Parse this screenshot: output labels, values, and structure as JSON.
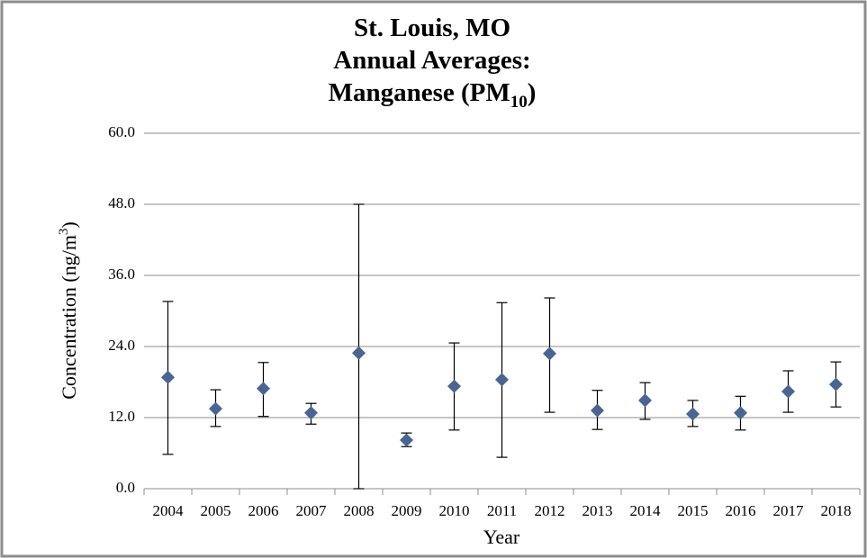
{
  "chart_data": {
    "type": "errorbar",
    "title": {
      "lines": [
        "St. Louis, MO",
        "Annual Averages:"
      ],
      "last": [
        "Manganese (PM",
        "10",
        ")"
      ]
    },
    "xlabel": "Year",
    "ylabel": [
      "Concentration (ng/m",
      "3",
      ")"
    ],
    "categories": [
      "2004",
      "2005",
      "2006",
      "2007",
      "2008",
      "2009",
      "2010",
      "2011",
      "2012",
      "2013",
      "2014",
      "2015",
      "2016",
      "2017",
      "2018"
    ],
    "values": [
      18.8,
      13.5,
      16.9,
      12.8,
      22.9,
      8.2,
      17.3,
      18.4,
      22.8,
      13.2,
      14.9,
      12.6,
      12.8,
      16.4,
      17.6
    ],
    "lower": [
      5.8,
      10.5,
      12.2,
      10.9,
      0.0,
      7.1,
      9.9,
      5.3,
      12.9,
      10.0,
      11.7,
      10.5,
      9.9,
      12.9,
      13.8
    ],
    "upper": [
      31.6,
      16.7,
      21.3,
      14.4,
      48.0,
      9.4,
      24.6,
      31.4,
      32.2,
      16.6,
      17.9,
      14.9,
      15.6,
      19.9,
      21.4
    ],
    "color": "#4a6591",
    "ylim": [
      0,
      60
    ],
    "yticks": [
      {
        "value": 0,
        "label": "0.0"
      },
      {
        "value": 12,
        "label": "12.0"
      },
      {
        "value": 24,
        "label": "24.0"
      },
      {
        "value": 36,
        "label": "36.0"
      },
      {
        "value": 48,
        "label": "48.0"
      },
      {
        "value": 60,
        "label": "60.0"
      }
    ],
    "grid": true
  }
}
